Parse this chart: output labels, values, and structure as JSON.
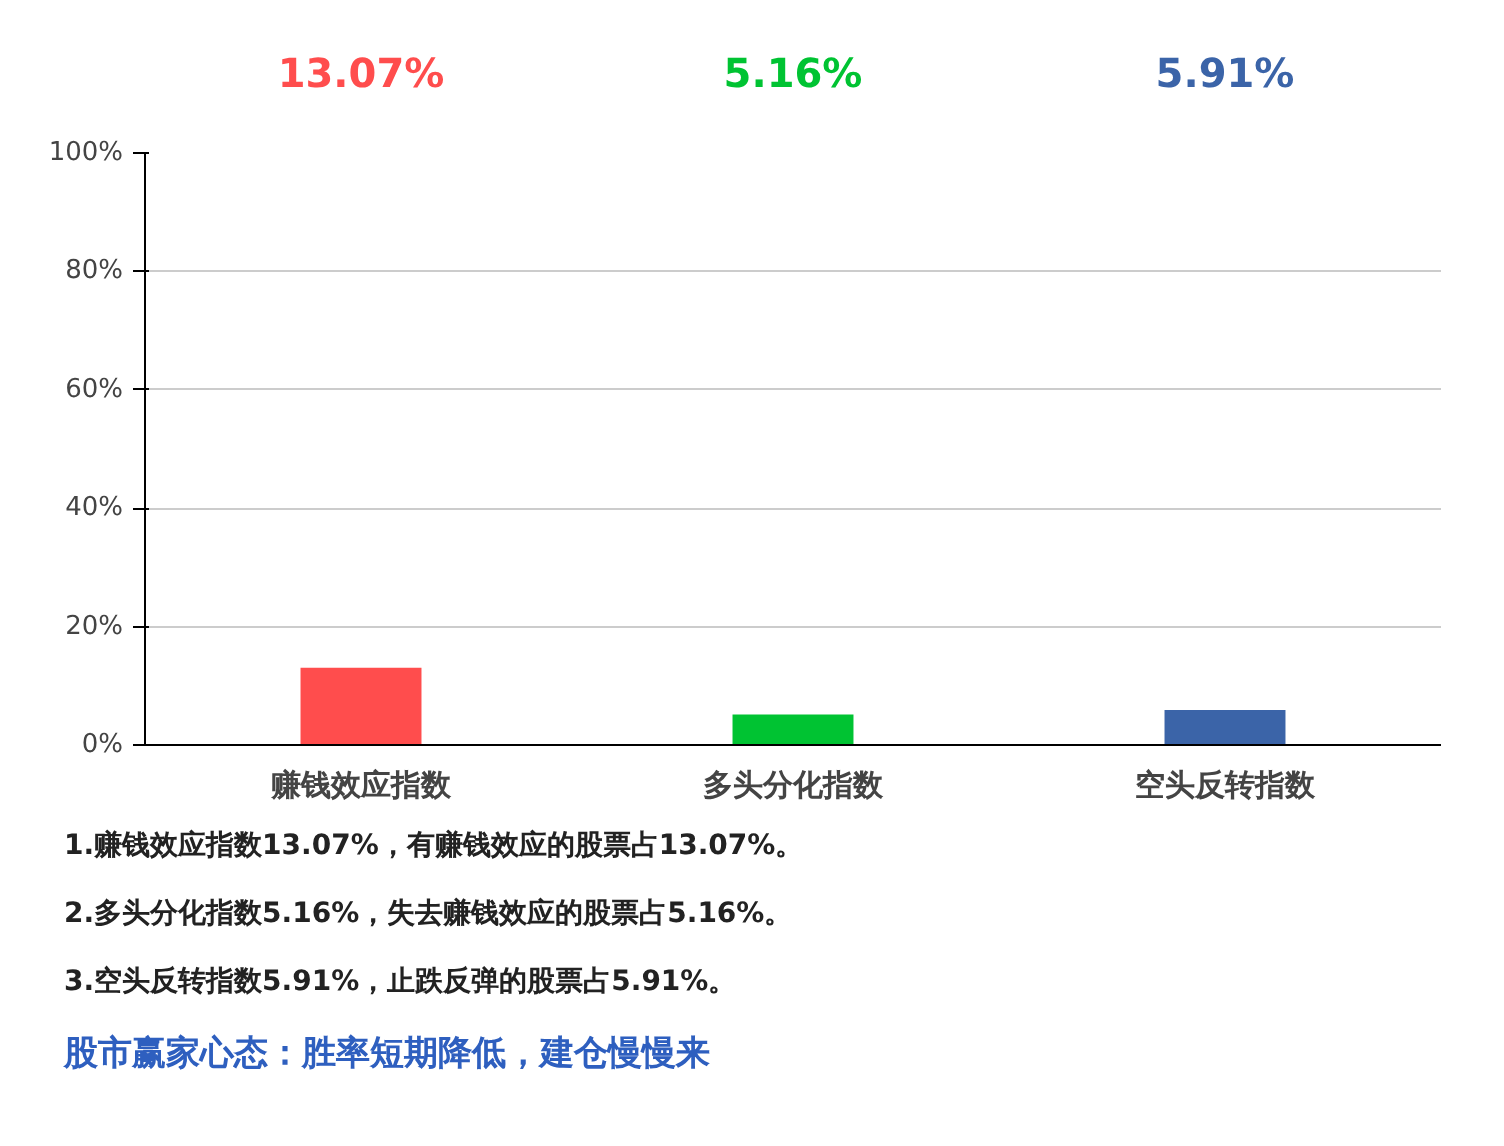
{
  "chart_data": {
    "type": "bar",
    "categories": [
      "赚钱效应指数",
      "多头分化指数",
      "空头反转指数"
    ],
    "values": [
      13.07,
      5.16,
      5.91
    ],
    "colors": [
      "#ff4d4d",
      "#00c332",
      "#3b64a8"
    ],
    "value_labels": [
      "13.07%",
      "5.16%",
      "5.91%"
    ],
    "ylim": [
      0,
      100
    ],
    "yticks": [
      {
        "value": 0,
        "label": "0%"
      },
      {
        "value": 20,
        "label": "20%"
      },
      {
        "value": 40,
        "label": "40%"
      },
      {
        "value": 60,
        "label": "60%"
      },
      {
        "value": 80,
        "label": "80%"
      },
      {
        "value": 100,
        "label": "100%"
      }
    ],
    "grid": "y",
    "annotations": [
      "1.赚钱效应指数13.07%，有赚钱效应的股票占13.07%。",
      "2.多头分化指数5.16%，失去赚钱效应的股票占5.16%。",
      "3.空头反转指数5.91%，止跌反弹的股票占5.91%。",
      "股市赢家心态：胜率短期降低，建仓慢慢来"
    ]
  }
}
